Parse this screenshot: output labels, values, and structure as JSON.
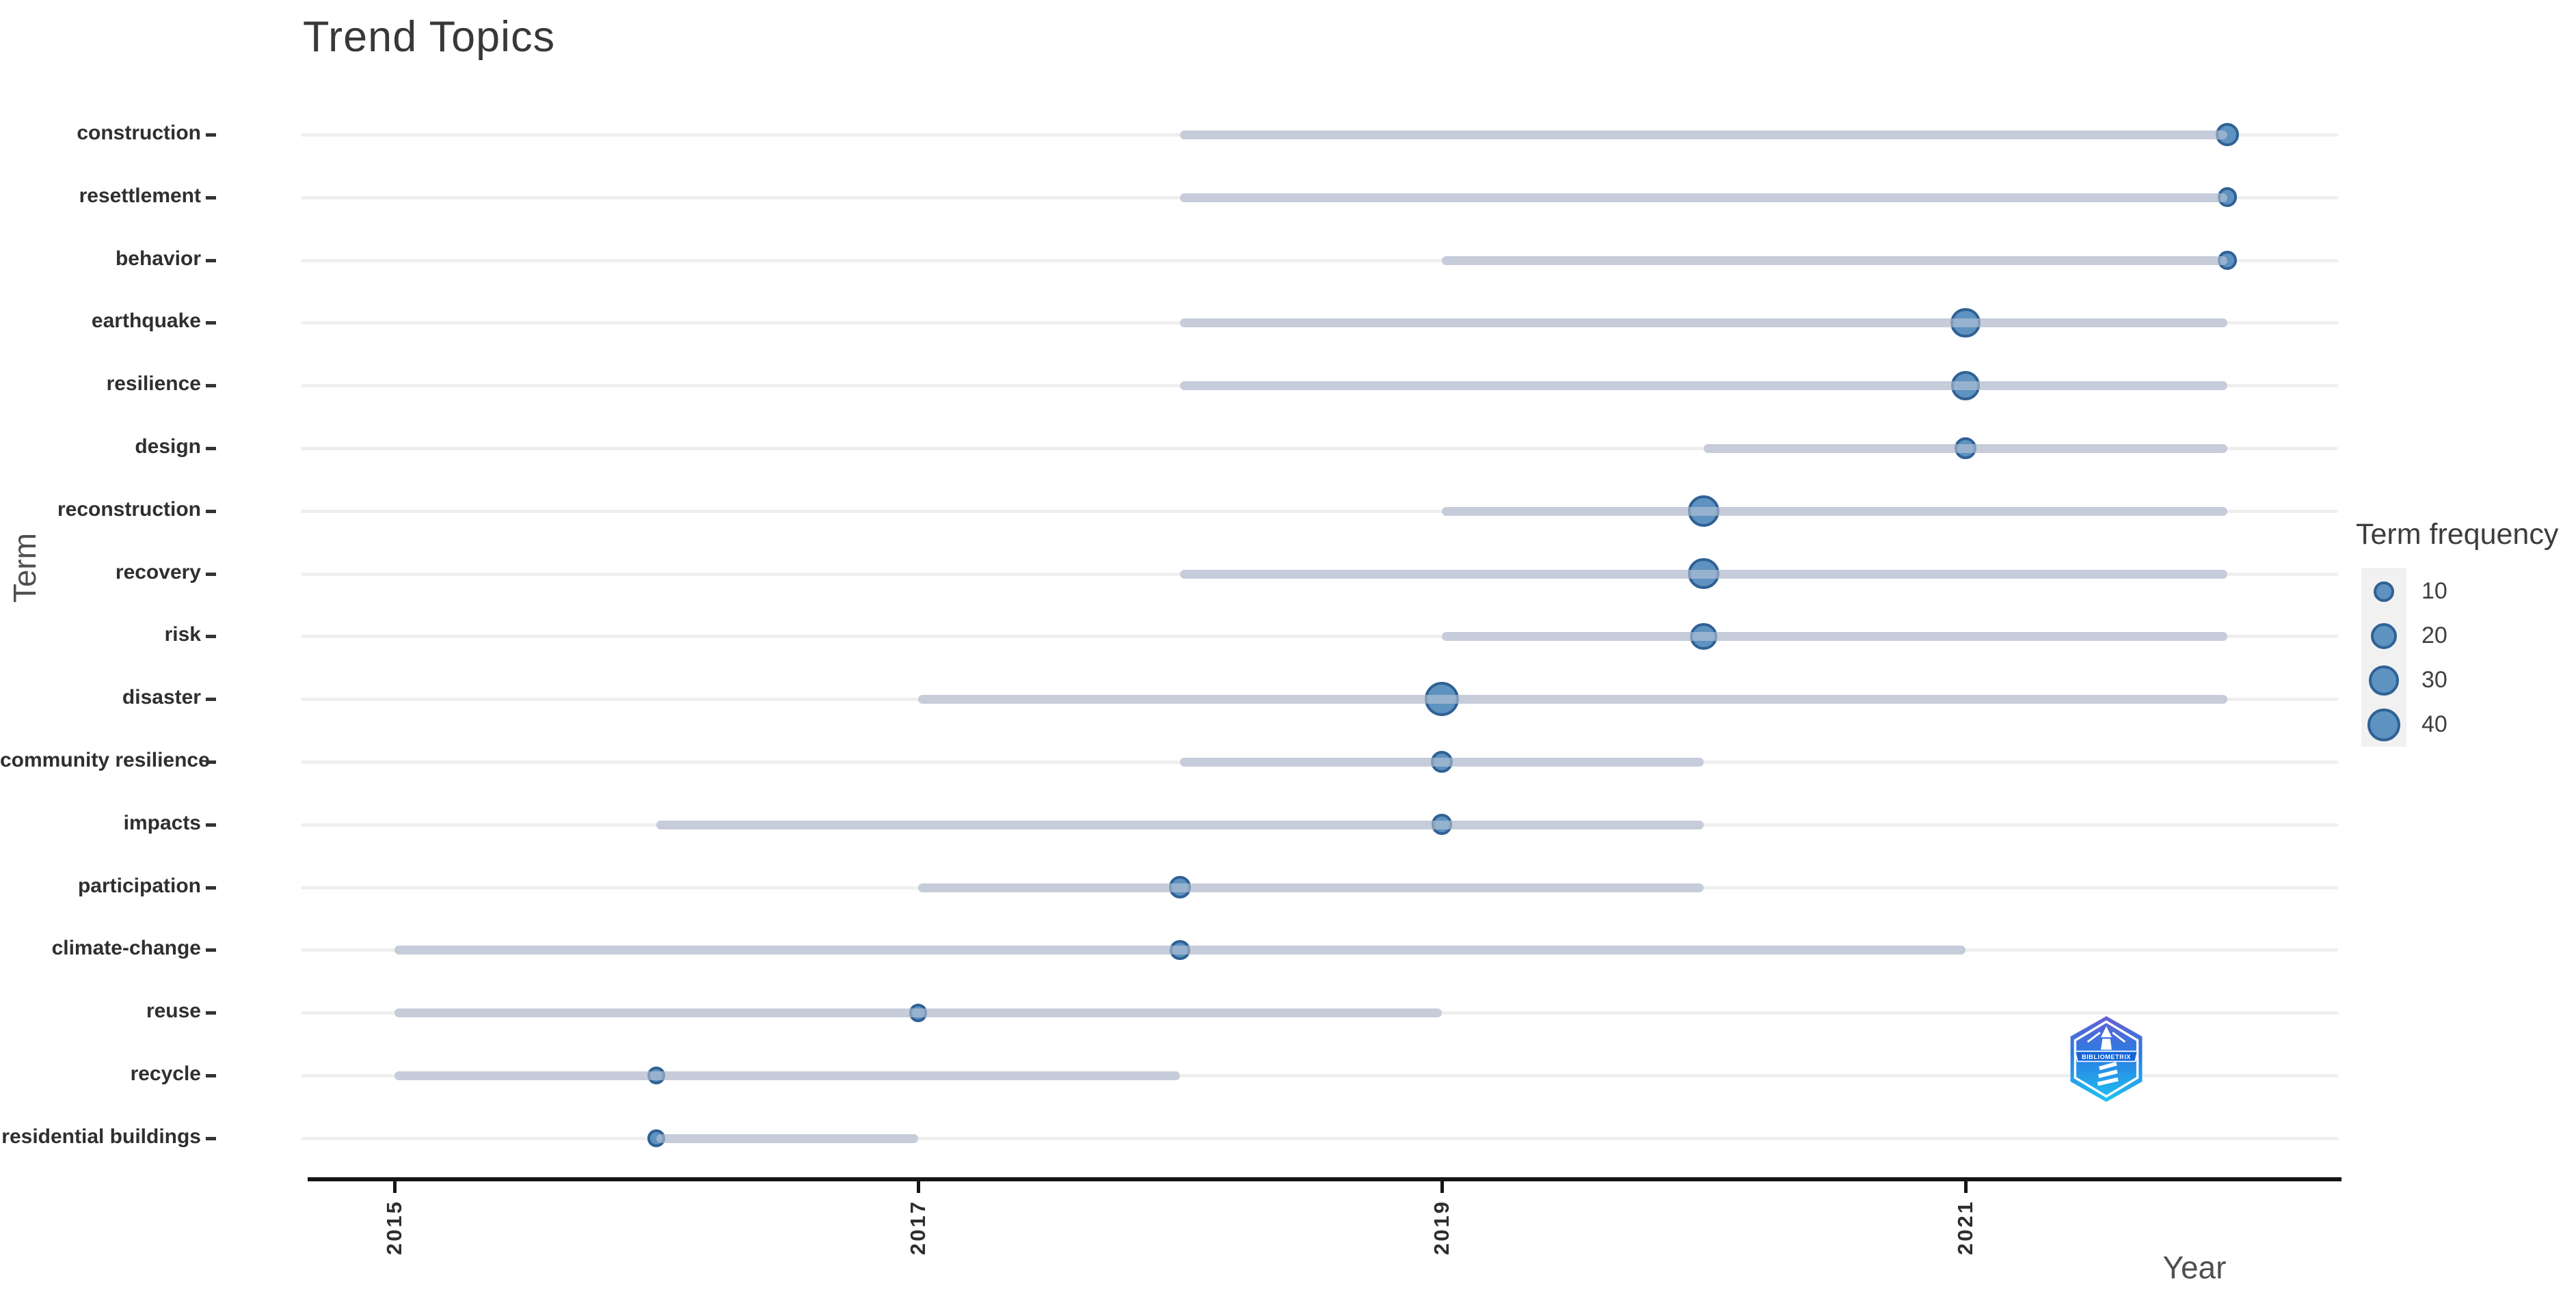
{
  "title": "Trend Topics",
  "x_axis": {
    "label": "Year",
    "ticks": [
      "2015",
      "2017",
      "2019",
      "2021"
    ],
    "tick_years": [
      2015,
      2017,
      2019,
      2021
    ]
  },
  "y_axis": {
    "label": "Term"
  },
  "legend": {
    "title": "Term frequency",
    "sizes": [
      10,
      20,
      30,
      40
    ]
  },
  "logo": {
    "name": "bibliometrix-logo",
    "banner_text": "BIBLIOMETRIX"
  },
  "colors": {
    "dot_fill": "#5e92c0",
    "dot_stroke": "#2f6195",
    "segment": "#c6ccd9",
    "gridline": "#efefef",
    "axis": "#151515",
    "title_text": "#383838",
    "label_text": "#2f2f2f",
    "logo_gradient_top": "#6460d2",
    "logo_gradient_mid": "#2b7ce2",
    "logo_gradient_bottom": "#1ec2f2"
  },
  "chart_data": {
    "type": "scatter",
    "subtype": "bubble-timeline",
    "title": "Trend Topics",
    "xlabel": "Year",
    "ylabel": "Term",
    "xlim": [
      2014.7,
      2022.45
    ],
    "grid": "horizontal-only",
    "legend_position": "right",
    "legend_title": "Term frequency",
    "legend_sizes": [
      10,
      20,
      30,
      40
    ],
    "terms": [
      {
        "term": "construction",
        "freq": 15,
        "year_q1": 2018,
        "year_med": 2022,
        "year_q3": 2022
      },
      {
        "term": "resettlement",
        "freq": 8,
        "year_q1": 2018,
        "year_med": 2022,
        "year_q3": 2022
      },
      {
        "term": "behavior",
        "freq": 7,
        "year_q1": 2019,
        "year_med": 2022,
        "year_q3": 2022
      },
      {
        "term": "earthquake",
        "freq": 30,
        "year_q1": 2018,
        "year_med": 2021,
        "year_q3": 2022
      },
      {
        "term": "resilience",
        "freq": 28,
        "year_q1": 2018,
        "year_med": 2021,
        "year_q3": 2022
      },
      {
        "term": "design",
        "freq": 12,
        "year_q1": 2020,
        "year_med": 2021,
        "year_q3": 2022
      },
      {
        "term": "reconstruction",
        "freq": 35,
        "year_q1": 2019,
        "year_med": 2020,
        "year_q3": 2022
      },
      {
        "term": "recovery",
        "freq": 34,
        "year_q1": 2018,
        "year_med": 2020,
        "year_q3": 2022
      },
      {
        "term": "risk",
        "freq": 22,
        "year_q1": 2019,
        "year_med": 2020,
        "year_q3": 2022
      },
      {
        "term": "disaster",
        "freq": 45,
        "year_q1": 2017,
        "year_med": 2019,
        "year_q3": 2022
      },
      {
        "term": "community resilience",
        "freq": 12,
        "year_q1": 2018,
        "year_med": 2019,
        "year_q3": 2020
      },
      {
        "term": "impacts",
        "freq": 10,
        "year_q1": 2016,
        "year_med": 2019,
        "year_q3": 2020
      },
      {
        "term": "participation",
        "freq": 12,
        "year_q1": 2017,
        "year_med": 2018,
        "year_q3": 2020
      },
      {
        "term": "climate-change",
        "freq": 9,
        "year_q1": 2015,
        "year_med": 2018,
        "year_q3": 2021
      },
      {
        "term": "reuse",
        "freq": 6,
        "year_q1": 2015,
        "year_med": 2017,
        "year_q3": 2019
      },
      {
        "term": "recycle",
        "freq": 6,
        "year_q1": 2015,
        "year_med": 2016,
        "year_q3": 2018
      },
      {
        "term": "residential buildings",
        "freq": 5,
        "year_q1": 2016,
        "year_med": 2016,
        "year_q3": 2017
      }
    ]
  }
}
